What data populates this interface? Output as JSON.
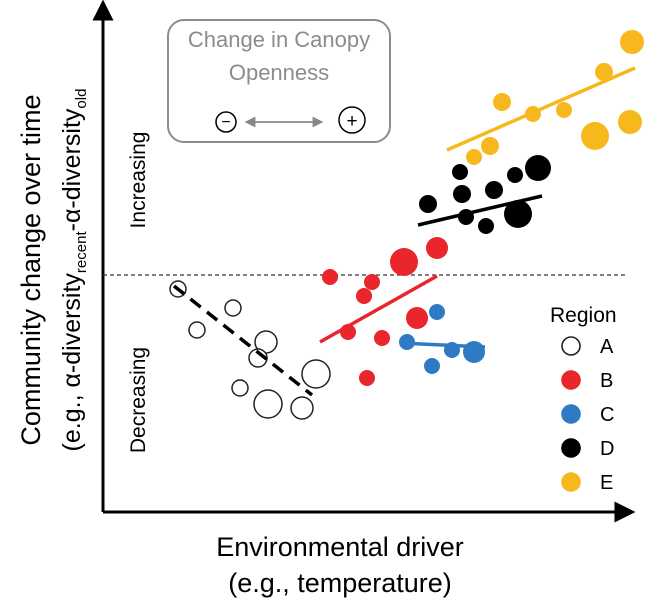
{
  "axes": {
    "x_title": "Environmental driver",
    "x_subtitle": "(e.g., temperature)",
    "y_title": "Community change over time",
    "y_sub_prefix": "(e.g., α-diversity",
    "y_sub_recent": "recent",
    "y_sub_mid": "-α-diversity",
    "y_sub_old": "old"
  },
  "zones": {
    "increasing": "Increasing",
    "decreasing": "Decreasing"
  },
  "canopy_box": {
    "title_line1": "Change in Canopy",
    "title_line2": "Openness",
    "minus": "−",
    "plus": "+"
  },
  "legend": {
    "title": "Region",
    "items": [
      {
        "label": "A",
        "color": "#ffffff",
        "stroke": "#222222"
      },
      {
        "label": "B",
        "color": "#e8262b",
        "stroke": "#e8262b"
      },
      {
        "label": "C",
        "color": "#2e7ac4",
        "stroke": "#2e7ac4"
      },
      {
        "label": "D",
        "color": "#000000",
        "stroke": "#000000"
      },
      {
        "label": "E",
        "color": "#f7b81d",
        "stroke": "#f7b81d"
      }
    ]
  },
  "colors": {
    "A": "#222222",
    "B": "#e8262b",
    "C": "#2e7ac4",
    "D": "#000000",
    "E": "#f7b81d",
    "canopy_box_text": "#8c8c8c"
  }
}
